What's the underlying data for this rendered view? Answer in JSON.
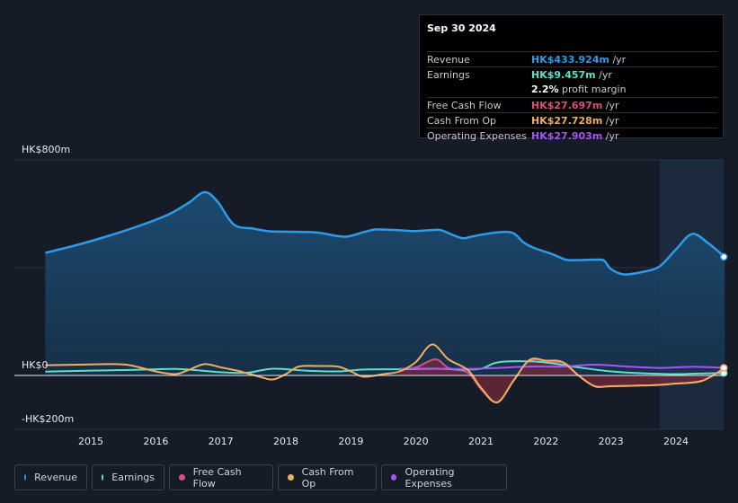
{
  "chart_data": {
    "type": "area",
    "ylabels": {
      "top": "HK$800m",
      "zero": "HK$0",
      "bottom": "-HK$200m"
    },
    "ylim": [
      -200,
      800
    ],
    "xlim": [
      2014.3,
      2024.75
    ],
    "x_ticks": [
      "2015",
      "2016",
      "2017",
      "2018",
      "2019",
      "2020",
      "2021",
      "2022",
      "2023",
      "2024"
    ],
    "highlight_from": 2023.75,
    "series": [
      {
        "name": "Revenue",
        "color": "#2e9bea",
        "fill": true,
        "points": [
          [
            2014.3,
            455
          ],
          [
            2014.8,
            485
          ],
          [
            2015.3,
            520
          ],
          [
            2015.8,
            560
          ],
          [
            2016.2,
            598
          ],
          [
            2016.5,
            640
          ],
          [
            2016.75,
            680
          ],
          [
            2016.95,
            645
          ],
          [
            2017.2,
            560
          ],
          [
            2017.5,
            545
          ],
          [
            2017.75,
            535
          ],
          [
            2018.2,
            533
          ],
          [
            2018.5,
            530
          ],
          [
            2018.9,
            515
          ],
          [
            2019.2,
            532
          ],
          [
            2019.4,
            542
          ],
          [
            2019.8,
            538
          ],
          [
            2020.0,
            536
          ],
          [
            2020.3,
            540
          ],
          [
            2020.4,
            538
          ],
          [
            2020.7,
            510
          ],
          [
            2020.85,
            515
          ],
          [
            2021.0,
            522
          ],
          [
            2021.3,
            532
          ],
          [
            2021.5,
            528
          ],
          [
            2021.65,
            495
          ],
          [
            2021.8,
            475
          ],
          [
            2022.1,
            450
          ],
          [
            2022.3,
            430
          ],
          [
            2022.5,
            428
          ],
          [
            2022.8,
            430
          ],
          [
            2022.9,
            425
          ],
          [
            2023.0,
            395
          ],
          [
            2023.2,
            375
          ],
          [
            2023.5,
            385
          ],
          [
            2023.75,
            405
          ],
          [
            2024.0,
            468
          ],
          [
            2024.25,
            525
          ],
          [
            2024.5,
            490
          ],
          [
            2024.75,
            440
          ]
        ]
      },
      {
        "name": "Earnings",
        "color": "#5ee0c8",
        "fill": false,
        "points": [
          [
            2014.3,
            14
          ],
          [
            2015,
            18
          ],
          [
            2015.5,
            20
          ],
          [
            2016,
            23
          ],
          [
            2016.3,
            24
          ],
          [
            2016.6,
            20
          ],
          [
            2017,
            12
          ],
          [
            2017.4,
            10
          ],
          [
            2017.8,
            25
          ],
          [
            2018.3,
            18
          ],
          [
            2018.8,
            15
          ],
          [
            2019.2,
            22
          ],
          [
            2019.8,
            23
          ],
          [
            2020.3,
            25
          ],
          [
            2020.7,
            22
          ],
          [
            2021.0,
            25
          ],
          [
            2021.2,
            45
          ],
          [
            2021.4,
            52
          ],
          [
            2021.8,
            52
          ],
          [
            2022.1,
            45
          ],
          [
            2022.5,
            30
          ],
          [
            2023.0,
            15
          ],
          [
            2023.5,
            8
          ],
          [
            2024.0,
            5
          ],
          [
            2024.5,
            8
          ],
          [
            2024.75,
            9
          ]
        ]
      },
      {
        "name": "Free Cash Flow",
        "color": "#d94f7f",
        "fill": true,
        "fillColor": "#7a2a3c",
        "points": [
          [
            2019.75,
            22
          ],
          [
            2020.0,
            30
          ],
          [
            2020.3,
            60
          ],
          [
            2020.5,
            28
          ],
          [
            2020.8,
            10
          ],
          [
            2021.0,
            -50
          ],
          [
            2021.25,
            -100
          ],
          [
            2021.5,
            -20
          ],
          [
            2021.75,
            55
          ],
          [
            2022.1,
            50
          ],
          [
            2022.3,
            45
          ],
          [
            2022.5,
            0
          ],
          [
            2022.75,
            -40
          ],
          [
            2023.0,
            -40
          ],
          [
            2023.5,
            -37
          ],
          [
            2023.75,
            -35
          ],
          [
            2024.0,
            -30
          ],
          [
            2024.4,
            -20
          ],
          [
            2024.75,
            28
          ]
        ]
      },
      {
        "name": "Cash From Op",
        "color": "#efae5e",
        "fill": false,
        "points": [
          [
            2014.3,
            38
          ],
          [
            2014.8,
            40
          ],
          [
            2015.3,
            42
          ],
          [
            2015.6,
            38
          ],
          [
            2016.0,
            15
          ],
          [
            2016.3,
            5
          ],
          [
            2016.5,
            20
          ],
          [
            2016.75,
            42
          ],
          [
            2017.0,
            30
          ],
          [
            2017.3,
            15
          ],
          [
            2017.6,
            -5
          ],
          [
            2017.8,
            -15
          ],
          [
            2018.0,
            5
          ],
          [
            2018.2,
            33
          ],
          [
            2018.5,
            35
          ],
          [
            2018.8,
            33
          ],
          [
            2019.0,
            15
          ],
          [
            2019.2,
            -5
          ],
          [
            2019.5,
            5
          ],
          [
            2019.75,
            15
          ],
          [
            2020.0,
            50
          ],
          [
            2020.25,
            115
          ],
          [
            2020.5,
            60
          ],
          [
            2020.8,
            20
          ],
          [
            2021.0,
            -45
          ],
          [
            2021.25,
            -100
          ],
          [
            2021.5,
            -20
          ],
          [
            2021.75,
            58
          ],
          [
            2022.0,
            55
          ],
          [
            2022.25,
            50
          ],
          [
            2022.5,
            0
          ],
          [
            2022.75,
            -40
          ],
          [
            2023.0,
            -40
          ],
          [
            2023.5,
            -37
          ],
          [
            2023.75,
            -35
          ],
          [
            2024.0,
            -30
          ],
          [
            2024.4,
            -20
          ],
          [
            2024.75,
            28
          ]
        ]
      },
      {
        "name": "Operating Expenses",
        "color": "#a855f7",
        "fill": false,
        "points": [
          [
            2019.75,
            25
          ],
          [
            2020.25,
            26
          ],
          [
            2020.75,
            24
          ],
          [
            2021.25,
            28
          ],
          [
            2021.75,
            33
          ],
          [
            2022.25,
            33
          ],
          [
            2022.75,
            40
          ],
          [
            2023.25,
            33
          ],
          [
            2023.75,
            28
          ],
          [
            2024.25,
            32
          ],
          [
            2024.75,
            28
          ]
        ]
      }
    ]
  },
  "tooltip": {
    "date": "Sep 30 2024",
    "rows": [
      {
        "label": "Revenue",
        "value": "HK$433.924m",
        "unit": " /yr",
        "color": "#2e9bea"
      },
      {
        "label": "Earnings",
        "value": "HK$9.457m",
        "unit": " /yr",
        "color": "#5ee0c8"
      },
      {
        "label": "",
        "value": "2.2%",
        "unit": " profit margin",
        "color": "#ffffff"
      },
      {
        "label": "Free Cash Flow",
        "value": "HK$27.697m",
        "unit": " /yr",
        "color": "#d94f7f"
      },
      {
        "label": "Cash From Op",
        "value": "HK$27.728m",
        "unit": " /yr",
        "color": "#efae5e"
      },
      {
        "label": "Operating Expenses",
        "value": "HK$27.903m",
        "unit": " /yr",
        "color": "#a855f7"
      }
    ]
  },
  "legend": [
    {
      "label": "Revenue",
      "color": "#2e9bea"
    },
    {
      "label": "Earnings",
      "color": "#5ee0c8"
    },
    {
      "label": "Free Cash Flow",
      "color": "#d94f7f"
    },
    {
      "label": "Cash From Op",
      "color": "#efae5e"
    },
    {
      "label": "Operating Expenses",
      "color": "#a855f7"
    }
  ]
}
